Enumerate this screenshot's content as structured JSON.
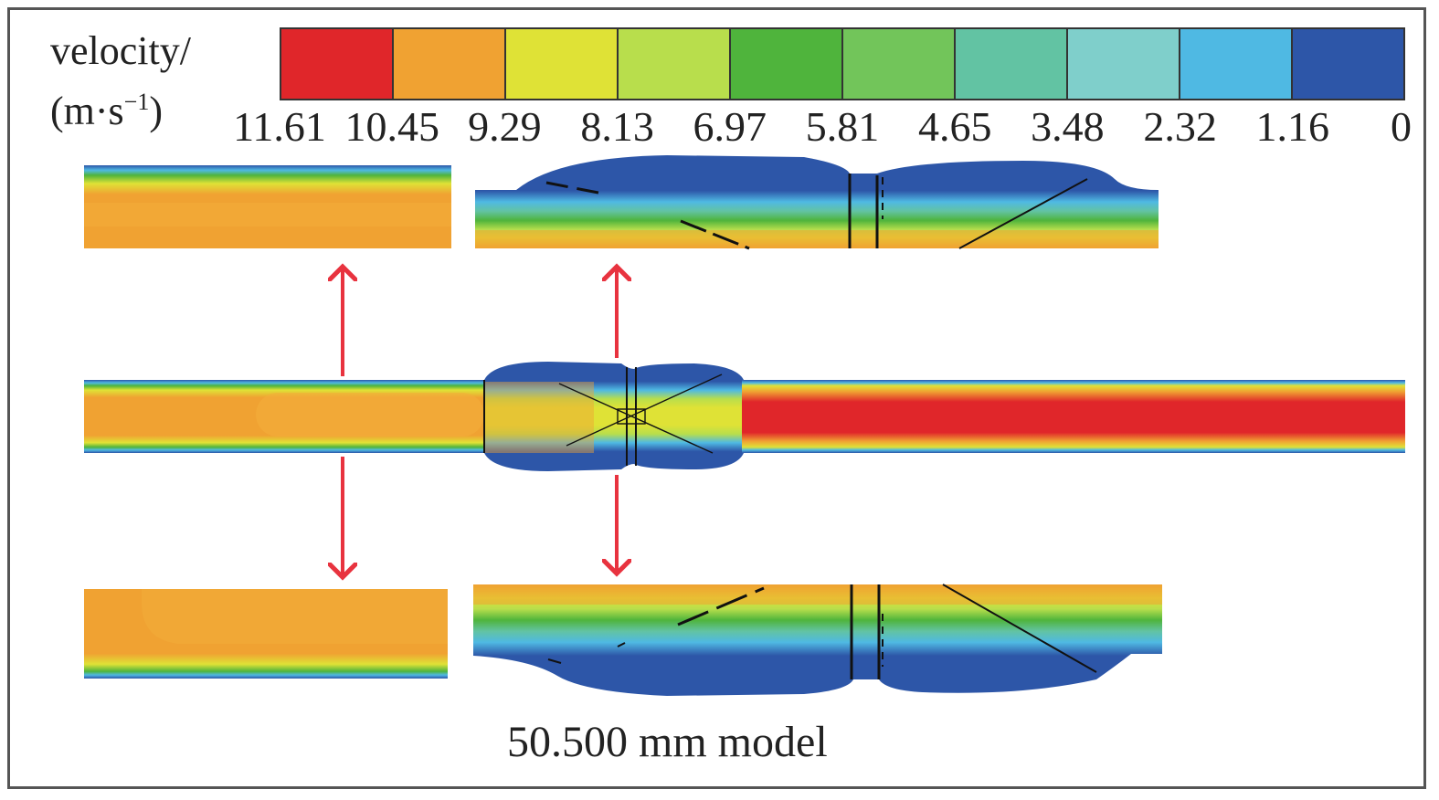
{
  "legend": {
    "title_line1": "velocity/",
    "title_line2_prefix": "(m·s",
    "title_line2_exp": "−1",
    "title_line2_suffix": ")",
    "ticks": [
      "11.61",
      "10.45",
      "9.29",
      "8.13",
      "6.97",
      "5.81",
      "4.65",
      "3.48",
      "2.32",
      "1.16",
      "0"
    ],
    "colors": [
      "#e0262a",
      "#f0a232",
      "#dfe236",
      "#b8de4c",
      "#4fb43c",
      "#72c55a",
      "#62c3a3",
      "#7fcfcb",
      "#4fb9e3",
      "#2d56a8"
    ]
  },
  "caption": "50.500 mm model",
  "arrow_color": "#e8333f"
}
